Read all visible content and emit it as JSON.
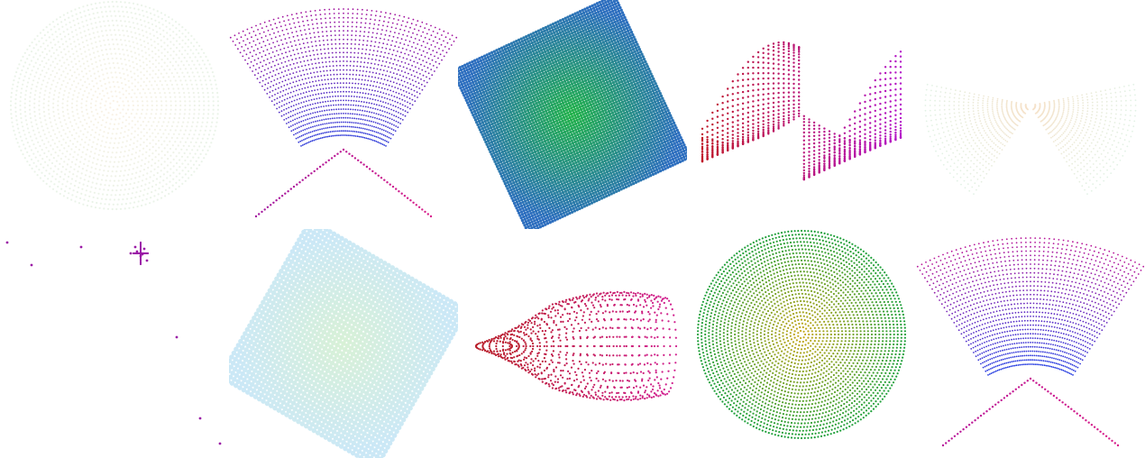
{
  "gallery": {
    "rows": 2,
    "columns": 5,
    "background": "#ffffff",
    "tiles": [
      {
        "name": "tile-disc-cream",
        "shape": "disc",
        "palette": [
          "#f6e7cf",
          "#d9ead7"
        ],
        "density": "sparse",
        "opacity": 0.55
      },
      {
        "name": "tile-fan-hyperbola",
        "shape": "fan",
        "palette": [
          "#a2169f",
          "#2f3bd8"
        ],
        "density": "dense",
        "opacity": 1
      },
      {
        "name": "tile-square-teal",
        "shape": "square",
        "palette": [
          "#22b24a",
          "#2e6fbf"
        ],
        "density": "solid",
        "opacity": 1,
        "rotation_deg": -25
      },
      {
        "name": "tile-twisted-sheet",
        "shape": "twist",
        "palette": [
          "#c0182a",
          "#b415c8"
        ],
        "density": "medium",
        "opacity": 1
      },
      {
        "name": "tile-bowtie-pale",
        "shape": "bowtie",
        "palette": [
          "#f2cfa6",
          "#cfe9d4"
        ],
        "density": "sparse",
        "opacity": 0.6
      },
      {
        "name": "tile-scattered-points",
        "shape": "scatter",
        "palette": [
          "#9a1aa6",
          "#9a1aa6"
        ],
        "density": "few",
        "opacity": 1
      },
      {
        "name": "tile-square-pale-cyan",
        "shape": "square",
        "palette": [
          "#cfeecd",
          "#bfe3f5"
        ],
        "density": "sparse",
        "opacity": 0.8,
        "rotation_deg": 30
      },
      {
        "name": "tile-horn-cone",
        "shape": "horn",
        "palette": [
          "#b81c28",
          "#d11f8e"
        ],
        "density": "dense",
        "opacity": 1
      },
      {
        "name": "tile-disc-yellow-green",
        "shape": "disc",
        "palette": [
          "#c9a81c",
          "#1fa03a"
        ],
        "density": "medium",
        "opacity": 1
      },
      {
        "name": "tile-fan-magenta-blue",
        "shape": "fan",
        "palette": [
          "#b7179a",
          "#233ae0"
        ],
        "density": "dense",
        "opacity": 1
      }
    ]
  }
}
